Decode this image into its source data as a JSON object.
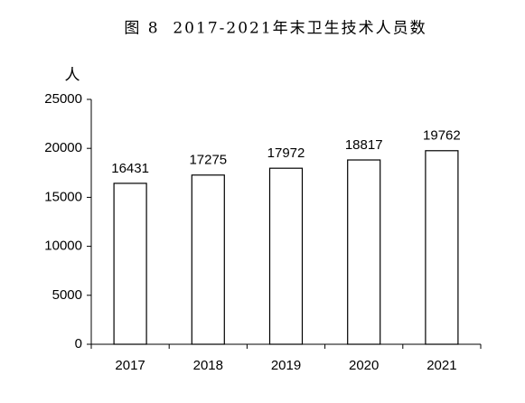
{
  "chart_data": {
    "type": "bar",
    "title": "图 8  2017-2021年末卫生技术人员数",
    "y_label": "人",
    "categories": [
      "2017",
      "2018",
      "2019",
      "2020",
      "2021"
    ],
    "values": [
      16431,
      17275,
      17972,
      18817,
      19762
    ],
    "color": "#ffffff",
    "edge_color": "#000000",
    "ylim": [
      0,
      25000
    ],
    "yticks": [
      0,
      5000,
      10000,
      15000,
      20000,
      25000
    ],
    "grid": false
  }
}
